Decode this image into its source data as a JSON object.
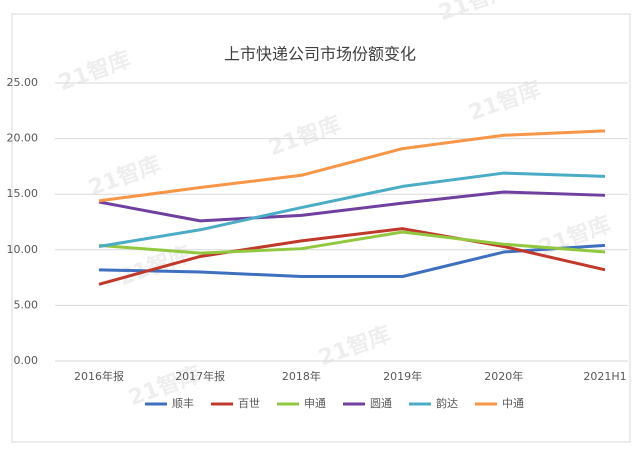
{
  "chart_data": {
    "type": "line",
    "title": "上市快递公司市场份额变化",
    "watermark": "21智库",
    "categories": [
      "2016年报",
      "2017年报",
      "2018年",
      "2019年",
      "2020年",
      "2021H1"
    ],
    "series": [
      {
        "name": "顺丰",
        "color": "#3f6fbf",
        "values": [
          8.2,
          8.0,
          7.6,
          7.6,
          9.8,
          10.4
        ]
      },
      {
        "name": "百世",
        "color": "#c0392b",
        "values": [
          6.9,
          9.4,
          10.8,
          11.9,
          10.3,
          8.2
        ]
      },
      {
        "name": "申通",
        "color": "#92c840",
        "values": [
          10.4,
          9.7,
          10.1,
          11.6,
          10.5,
          9.8
        ]
      },
      {
        "name": "圆通",
        "color": "#7040a0",
        "values": [
          14.3,
          12.6,
          13.1,
          14.2,
          15.2,
          14.9
        ]
      },
      {
        "name": "韵达",
        "color": "#4bacc6",
        "values": [
          10.3,
          11.8,
          13.8,
          15.7,
          16.9,
          16.6
        ]
      },
      {
        "name": "中通",
        "color": "#f79646",
        "values": [
          14.4,
          15.6,
          16.7,
          19.1,
          20.3,
          20.7
        ]
      }
    ],
    "ylim": [
      0,
      25
    ],
    "yticks": [
      {
        "value": 0,
        "label": "0.00"
      },
      {
        "value": 5,
        "label": "5.00"
      },
      {
        "value": 10,
        "label": "10.00"
      },
      {
        "value": 15,
        "label": "15.00"
      },
      {
        "value": 20,
        "label": "20.00"
      },
      {
        "value": 25,
        "label": "25.00"
      }
    ],
    "grid": true,
    "legend": "bottom"
  }
}
